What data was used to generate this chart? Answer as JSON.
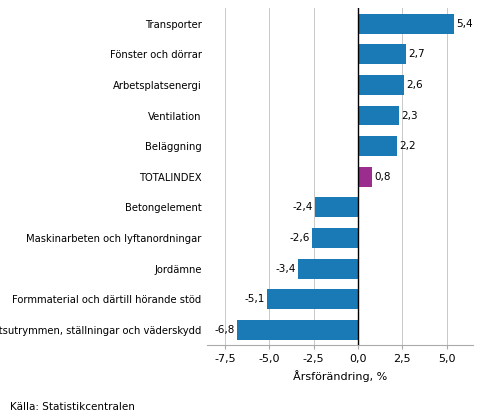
{
  "categories": [
    "Arbetsplatsutrymmen, ställningar och väderskydd",
    "Formmaterial och därtill hörande stöd",
    "Jordämne",
    "Maskinarbeten och lyftanordningar",
    "Betongelement",
    "TOTALINDEX",
    "Beläggning",
    "Ventilation",
    "Arbetsplatsenergi",
    "Fönster och dörrar",
    "Transporter"
  ],
  "values": [
    -6.8,
    -5.1,
    -3.4,
    -2.6,
    -2.4,
    0.8,
    2.2,
    2.3,
    2.6,
    2.7,
    5.4
  ],
  "xlabel": "Årsförändring, %",
  "xlim": [
    -8.5,
    6.5
  ],
  "xticks": [
    -7.5,
    -5.0,
    -2.5,
    0.0,
    2.5,
    5.0
  ],
  "xtick_labels": [
    "-7,5",
    "-5,0",
    "-2,5",
    "0,0",
    "2,5",
    "5,0"
  ],
  "source": "Källa: Statistikcentralen",
  "bar_color_default": "#1a7ab5",
  "bar_color_total": "#9b2d8e",
  "value_labels": [
    "-6,8",
    "-5,1",
    "-3,4",
    "-2,6",
    "-2,4",
    "0,8",
    "2,2",
    "2,3",
    "2,6",
    "2,7",
    "5,4"
  ],
  "grid_color": "#c8c8c8",
  "background_color": "#ffffff"
}
